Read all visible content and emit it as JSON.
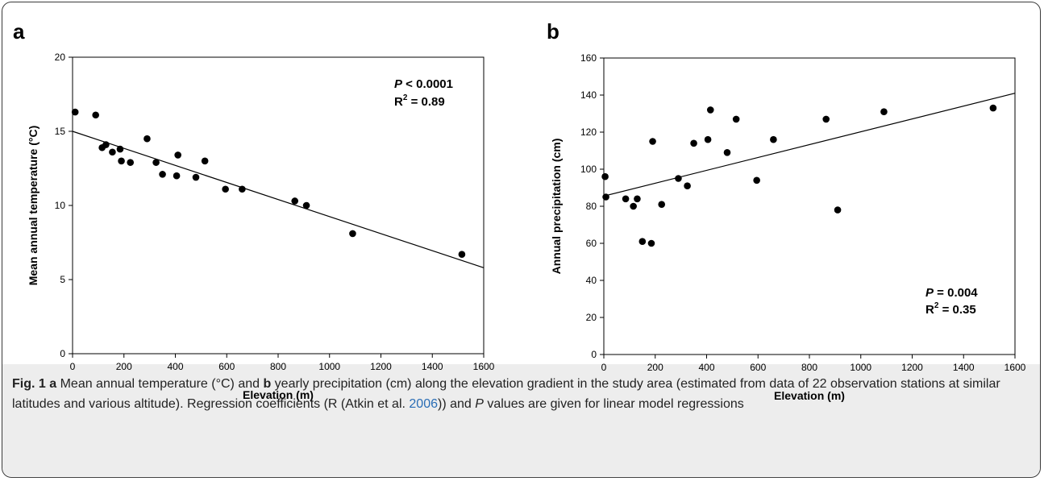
{
  "chart_data": [
    {
      "type": "scatter",
      "panel_label": "a",
      "xlabel": "Elevation (m)",
      "ylabel": "Mean annual temperature (°C)",
      "xlim": [
        0,
        1600
      ],
      "ylim": [
        0,
        20
      ],
      "x_ticks": [
        0,
        200,
        400,
        600,
        800,
        1000,
        1200,
        1400,
        1600
      ],
      "y_ticks": [
        0,
        5,
        10,
        15,
        20
      ],
      "points": [
        {
          "x": 10,
          "y": 16.3
        },
        {
          "x": 90,
          "y": 16.1
        },
        {
          "x": 115,
          "y": 13.9
        },
        {
          "x": 130,
          "y": 14.1
        },
        {
          "x": 155,
          "y": 13.6
        },
        {
          "x": 185,
          "y": 13.8
        },
        {
          "x": 190,
          "y": 13.0
        },
        {
          "x": 225,
          "y": 12.9
        },
        {
          "x": 290,
          "y": 14.5
        },
        {
          "x": 325,
          "y": 12.9
        },
        {
          "x": 350,
          "y": 12.1
        },
        {
          "x": 405,
          "y": 12.0
        },
        {
          "x": 410,
          "y": 13.4
        },
        {
          "x": 480,
          "y": 11.9
        },
        {
          "x": 515,
          "y": 13.0
        },
        {
          "x": 595,
          "y": 11.1
        },
        {
          "x": 660,
          "y": 11.1
        },
        {
          "x": 865,
          "y": 10.3
        },
        {
          "x": 910,
          "y": 10.0
        },
        {
          "x": 1090,
          "y": 8.1
        },
        {
          "x": 1515,
          "y": 6.7
        }
      ],
      "regression": {
        "x": [
          0,
          1600
        ],
        "y": [
          15.0,
          5.8
        ]
      },
      "stat_p_label": "P",
      "stat_p_value": " < 0.0001",
      "stat_r2_label": "R",
      "stat_r2_exp": "2",
      "stat_r2_value": " = 0.89"
    },
    {
      "type": "scatter",
      "panel_label": "b",
      "xlabel": "Elevation (m)",
      "ylabel": "Annual precipitation (cm)",
      "xlim": [
        0,
        1600
      ],
      "ylim": [
        0,
        160
      ],
      "x_ticks": [
        0,
        200,
        400,
        600,
        800,
        1000,
        1200,
        1400,
        1600
      ],
      "y_ticks": [
        0,
        20,
        40,
        60,
        80,
        100,
        120,
        140,
        160
      ],
      "points": [
        {
          "x": 5,
          "y": 96
        },
        {
          "x": 8,
          "y": 85
        },
        {
          "x": 85,
          "y": 84
        },
        {
          "x": 115,
          "y": 80
        },
        {
          "x": 130,
          "y": 84
        },
        {
          "x": 150,
          "y": 61
        },
        {
          "x": 185,
          "y": 60
        },
        {
          "x": 190,
          "y": 115
        },
        {
          "x": 225,
          "y": 81
        },
        {
          "x": 290,
          "y": 95
        },
        {
          "x": 325,
          "y": 91
        },
        {
          "x": 350,
          "y": 114
        },
        {
          "x": 405,
          "y": 116
        },
        {
          "x": 415,
          "y": 132
        },
        {
          "x": 480,
          "y": 109
        },
        {
          "x": 515,
          "y": 127
        },
        {
          "x": 595,
          "y": 94
        },
        {
          "x": 660,
          "y": 116
        },
        {
          "x": 865,
          "y": 127
        },
        {
          "x": 910,
          "y": 78
        },
        {
          "x": 1090,
          "y": 131
        },
        {
          "x": 1515,
          "y": 133
        }
      ],
      "regression": {
        "x": [
          0,
          1600
        ],
        "y": [
          85.5,
          141
        ]
      },
      "stat_p_label": "P",
      "stat_p_value": " = 0.004",
      "stat_r2_label": "R",
      "stat_r2_exp": "2",
      "stat_r2_value": " = 0.35"
    }
  ],
  "caption": {
    "fig_label": "Fig. 1",
    "a_label": "a",
    "text1": " Mean annual temperature (°C) and ",
    "b_label": "b",
    "text2": " yearly precipitation (cm) along the elevation gradient in the study area (estimated from data of 22 observation stations at similar latitudes and various altitude). Regression coefficients (R (Atkin et al. ",
    "citation_year": "2006",
    "text3": ")) and ",
    "p_symbol": "P",
    "text4": " values are given for linear model regressions"
  }
}
